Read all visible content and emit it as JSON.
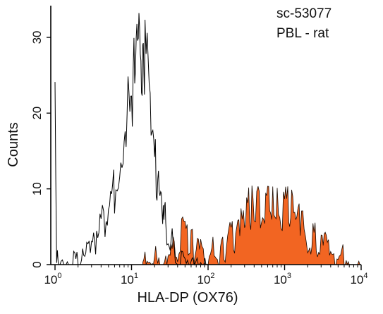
{
  "chart_data": {
    "type": "histogram",
    "title": "",
    "annotations": [
      "sc-53077",
      "PBL - rat"
    ],
    "xlabel": "HLA-DP (OX76)",
    "ylabel": "Counts",
    "x_scale": "log",
    "xlim": [
      1,
      10000
    ],
    "ylim": [
      0,
      34
    ],
    "x_ticks": [
      {
        "value": 1,
        "base": "10",
        "exp": "0"
      },
      {
        "value": 10,
        "base": "10",
        "exp": "1"
      },
      {
        "value": 100,
        "base": "10",
        "exp": "2"
      },
      {
        "value": 1000,
        "base": "10",
        "exp": "3"
      },
      {
        "value": 10000,
        "base": "10",
        "exp": "4"
      }
    ],
    "y_ticks": [
      0,
      10,
      20,
      30
    ],
    "grid": false,
    "legend": "none",
    "colors": {
      "control_stroke": "#000000",
      "stained_fill": "#f26522",
      "stained_stroke": "#1a0a00"
    },
    "series": [
      {
        "style": "open-outline",
        "x": [
          1,
          1.05,
          1.1,
          1.2,
          1.3,
          1.5,
          1.7,
          2,
          2.3,
          2.6,
          3,
          3.5,
          4,
          4.5,
          5,
          5.5,
          6,
          6.5,
          7,
          7.5,
          8,
          8.5,
          9,
          9.5,
          10,
          10.5,
          11,
          11.5,
          12,
          12.5,
          13,
          13.5,
          14,
          14.5,
          15,
          16,
          17,
          18,
          19,
          20,
          21,
          22,
          23,
          24,
          25,
          26,
          27,
          28,
          30,
          32,
          35,
          40,
          45,
          50,
          60,
          80,
          100
        ],
        "y": [
          26,
          0,
          2,
          0,
          1,
          1,
          2,
          1,
          2,
          3,
          4,
          4,
          6,
          8,
          8,
          10,
          12,
          14,
          15,
          18,
          20,
          22,
          24,
          25,
          27,
          28,
          29,
          30,
          32,
          30,
          29,
          31,
          28,
          29,
          30,
          29,
          26,
          22,
          19,
          16,
          14,
          13,
          13,
          12,
          11,
          10,
          9,
          8,
          6,
          5,
          4,
          2,
          1,
          1,
          0,
          0,
          0
        ]
      },
      {
        "style": "filled",
        "x": [
          14,
          15,
          16,
          18,
          20,
          22,
          25,
          28,
          30,
          35,
          40,
          45,
          50,
          55,
          60,
          65,
          70,
          80,
          90,
          100,
          120,
          150,
          180,
          200,
          230,
          260,
          300,
          350,
          400,
          450,
          500,
          550,
          600,
          700,
          800,
          900,
          1000,
          1100,
          1200,
          1400,
          1600,
          1800,
          2000,
          2500,
          3000,
          3500,
          4000,
          5000,
          6000,
          7000,
          8000,
          9000,
          10000
        ],
        "y": [
          0,
          1,
          0,
          1,
          2,
          1,
          2,
          3,
          4,
          5,
          3,
          5,
          6,
          5,
          4,
          3,
          3,
          3,
          2,
          2,
          3,
          3,
          4,
          5,
          5,
          6,
          7,
          9,
          10,
          10,
          9,
          8,
          9,
          10,
          10,
          9,
          9,
          10,
          9,
          8,
          7,
          6,
          5,
          5,
          4,
          3,
          2,
          2,
          2,
          1,
          1,
          0,
          0
        ]
      }
    ]
  }
}
